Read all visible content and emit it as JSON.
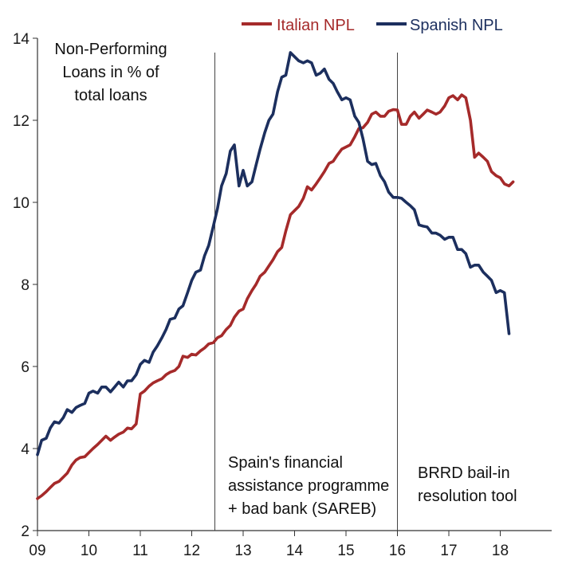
{
  "chart_data": {
    "type": "line",
    "title": "",
    "xlabel": "",
    "ylabel": "",
    "xlim": [
      2009,
      2019
    ],
    "ylim": [
      2,
      14
    ],
    "yticks": [
      2,
      4,
      6,
      8,
      10,
      12,
      14
    ],
    "xticks": [
      {
        "value": 2009,
        "label": "09"
      },
      {
        "value": 2010,
        "label": "10"
      },
      {
        "value": 2011,
        "label": "11"
      },
      {
        "value": 2012,
        "label": "12"
      },
      {
        "value": 2013,
        "label": "13"
      },
      {
        "value": 2014,
        "label": "14"
      },
      {
        "value": 2015,
        "label": "15"
      },
      {
        "value": 2016,
        "label": "16"
      },
      {
        "value": 2017,
        "label": "17"
      },
      {
        "value": 2018,
        "label": "18"
      }
    ],
    "grid": false,
    "legend_position": "top-right",
    "series": [
      {
        "name": "Italian NPL",
        "color": "#a52a2a",
        "points": [
          [
            2009.0,
            2.78
          ],
          [
            2009.08,
            2.85
          ],
          [
            2009.17,
            2.95
          ],
          [
            2009.25,
            3.05
          ],
          [
            2009.33,
            3.15
          ],
          [
            2009.42,
            3.2
          ],
          [
            2009.5,
            3.3
          ],
          [
            2009.58,
            3.4
          ],
          [
            2009.67,
            3.6
          ],
          [
            2009.75,
            3.72
          ],
          [
            2009.83,
            3.78
          ],
          [
            2009.92,
            3.8
          ],
          [
            2010.0,
            3.9
          ],
          [
            2010.08,
            4.0
          ],
          [
            2010.17,
            4.1
          ],
          [
            2010.25,
            4.2
          ],
          [
            2010.33,
            4.3
          ],
          [
            2010.42,
            4.2
          ],
          [
            2010.5,
            4.28
          ],
          [
            2010.58,
            4.35
          ],
          [
            2010.67,
            4.4
          ],
          [
            2010.75,
            4.5
          ],
          [
            2010.83,
            4.48
          ],
          [
            2010.92,
            4.6
          ],
          [
            2011.0,
            5.33
          ],
          [
            2011.08,
            5.4
          ],
          [
            2011.17,
            5.52
          ],
          [
            2011.25,
            5.6
          ],
          [
            2011.33,
            5.65
          ],
          [
            2011.42,
            5.7
          ],
          [
            2011.5,
            5.8
          ],
          [
            2011.58,
            5.86
          ],
          [
            2011.67,
            5.9
          ],
          [
            2011.75,
            6.0
          ],
          [
            2011.83,
            6.25
          ],
          [
            2011.92,
            6.22
          ],
          [
            2012.0,
            6.3
          ],
          [
            2012.08,
            6.28
          ],
          [
            2012.17,
            6.38
          ],
          [
            2012.25,
            6.45
          ],
          [
            2012.33,
            6.55
          ],
          [
            2012.42,
            6.58
          ],
          [
            2012.5,
            6.7
          ],
          [
            2012.58,
            6.75
          ],
          [
            2012.67,
            6.9
          ],
          [
            2012.75,
            7.0
          ],
          [
            2012.83,
            7.2
          ],
          [
            2012.92,
            7.35
          ],
          [
            2013.0,
            7.4
          ],
          [
            2013.08,
            7.65
          ],
          [
            2013.17,
            7.85
          ],
          [
            2013.25,
            8.0
          ],
          [
            2013.33,
            8.2
          ],
          [
            2013.42,
            8.3
          ],
          [
            2013.5,
            8.45
          ],
          [
            2013.58,
            8.6
          ],
          [
            2013.67,
            8.8
          ],
          [
            2013.75,
            8.9
          ],
          [
            2013.83,
            9.3
          ],
          [
            2013.92,
            9.7
          ],
          [
            2014.0,
            9.8
          ],
          [
            2014.08,
            9.9
          ],
          [
            2014.17,
            10.1
          ],
          [
            2014.25,
            10.38
          ],
          [
            2014.33,
            10.3
          ],
          [
            2014.42,
            10.45
          ],
          [
            2014.5,
            10.6
          ],
          [
            2014.58,
            10.75
          ],
          [
            2014.67,
            10.95
          ],
          [
            2014.75,
            11.0
          ],
          [
            2014.83,
            11.15
          ],
          [
            2014.92,
            11.3
          ],
          [
            2015.0,
            11.35
          ],
          [
            2015.08,
            11.4
          ],
          [
            2015.17,
            11.6
          ],
          [
            2015.25,
            11.8
          ],
          [
            2015.33,
            11.82
          ],
          [
            2015.42,
            11.95
          ],
          [
            2015.5,
            12.15
          ],
          [
            2015.58,
            12.2
          ],
          [
            2015.67,
            12.1
          ],
          [
            2015.75,
            12.1
          ],
          [
            2015.83,
            12.22
          ],
          [
            2015.92,
            12.26
          ],
          [
            2016.0,
            12.25
          ],
          [
            2016.08,
            11.9
          ],
          [
            2016.17,
            11.9
          ],
          [
            2016.25,
            12.1
          ],
          [
            2016.33,
            12.2
          ],
          [
            2016.42,
            12.05
          ],
          [
            2016.5,
            12.15
          ],
          [
            2016.58,
            12.25
          ],
          [
            2016.67,
            12.2
          ],
          [
            2016.75,
            12.15
          ],
          [
            2016.83,
            12.2
          ],
          [
            2016.92,
            12.35
          ],
          [
            2017.0,
            12.55
          ],
          [
            2017.08,
            12.6
          ],
          [
            2017.17,
            12.5
          ],
          [
            2017.25,
            12.62
          ],
          [
            2017.33,
            12.55
          ],
          [
            2017.42,
            12.0
          ],
          [
            2017.5,
            11.1
          ],
          [
            2017.58,
            11.2
          ],
          [
            2017.67,
            11.1
          ],
          [
            2017.75,
            11.0
          ],
          [
            2017.83,
            10.75
          ],
          [
            2017.92,
            10.65
          ],
          [
            2018.0,
            10.6
          ],
          [
            2018.08,
            10.45
          ],
          [
            2018.17,
            10.4
          ],
          [
            2018.25,
            10.5
          ]
        ]
      },
      {
        "name": "Spanish NPL",
        "color": "#1c2f5e",
        "points": [
          [
            2009.0,
            3.85
          ],
          [
            2009.08,
            4.2
          ],
          [
            2009.17,
            4.25
          ],
          [
            2009.25,
            4.5
          ],
          [
            2009.33,
            4.65
          ],
          [
            2009.42,
            4.62
          ],
          [
            2009.5,
            4.75
          ],
          [
            2009.58,
            4.95
          ],
          [
            2009.67,
            4.88
          ],
          [
            2009.75,
            5.0
          ],
          [
            2009.83,
            5.05
          ],
          [
            2009.92,
            5.1
          ],
          [
            2010.0,
            5.35
          ],
          [
            2010.08,
            5.4
          ],
          [
            2010.17,
            5.35
          ],
          [
            2010.25,
            5.5
          ],
          [
            2010.33,
            5.5
          ],
          [
            2010.42,
            5.38
          ],
          [
            2010.5,
            5.5
          ],
          [
            2010.58,
            5.62
          ],
          [
            2010.67,
            5.5
          ],
          [
            2010.75,
            5.65
          ],
          [
            2010.83,
            5.65
          ],
          [
            2010.92,
            5.8
          ],
          [
            2011.0,
            6.05
          ],
          [
            2011.08,
            6.15
          ],
          [
            2011.17,
            6.1
          ],
          [
            2011.25,
            6.35
          ],
          [
            2011.33,
            6.5
          ],
          [
            2011.42,
            6.7
          ],
          [
            2011.5,
            6.9
          ],
          [
            2011.58,
            7.15
          ],
          [
            2011.67,
            7.18
          ],
          [
            2011.75,
            7.4
          ],
          [
            2011.83,
            7.48
          ],
          [
            2011.92,
            7.8
          ],
          [
            2012.0,
            8.1
          ],
          [
            2012.08,
            8.3
          ],
          [
            2012.17,
            8.35
          ],
          [
            2012.25,
            8.7
          ],
          [
            2012.33,
            8.95
          ],
          [
            2012.42,
            9.42
          ],
          [
            2012.5,
            9.85
          ],
          [
            2012.58,
            10.4
          ],
          [
            2012.67,
            10.7
          ],
          [
            2012.75,
            11.25
          ],
          [
            2012.83,
            11.4
          ],
          [
            2012.92,
            10.4
          ],
          [
            2013.0,
            10.78
          ],
          [
            2013.08,
            10.4
          ],
          [
            2013.17,
            10.5
          ],
          [
            2013.25,
            10.9
          ],
          [
            2013.33,
            11.3
          ],
          [
            2013.42,
            11.7
          ],
          [
            2013.5,
            12.0
          ],
          [
            2013.58,
            12.15
          ],
          [
            2013.67,
            12.7
          ],
          [
            2013.75,
            13.05
          ],
          [
            2013.83,
            13.1
          ],
          [
            2013.92,
            13.65
          ],
          [
            2014.0,
            13.55
          ],
          [
            2014.08,
            13.45
          ],
          [
            2014.17,
            13.4
          ],
          [
            2014.25,
            13.45
          ],
          [
            2014.33,
            13.4
          ],
          [
            2014.42,
            13.1
          ],
          [
            2014.5,
            13.15
          ],
          [
            2014.58,
            13.25
          ],
          [
            2014.67,
            13.0
          ],
          [
            2014.75,
            12.9
          ],
          [
            2014.83,
            12.7
          ],
          [
            2014.92,
            12.5
          ],
          [
            2015.0,
            12.55
          ],
          [
            2015.08,
            12.5
          ],
          [
            2015.17,
            12.1
          ],
          [
            2015.25,
            11.95
          ],
          [
            2015.33,
            11.55
          ],
          [
            2015.42,
            11.0
          ],
          [
            2015.5,
            10.92
          ],
          [
            2015.58,
            10.95
          ],
          [
            2015.67,
            10.65
          ],
          [
            2015.75,
            10.5
          ],
          [
            2015.83,
            10.25
          ],
          [
            2015.92,
            10.12
          ],
          [
            2016.0,
            10.12
          ],
          [
            2016.08,
            10.1
          ],
          [
            2016.17,
            10.0
          ],
          [
            2016.25,
            9.92
          ],
          [
            2016.33,
            9.82
          ],
          [
            2016.42,
            9.45
          ],
          [
            2016.5,
            9.42
          ],
          [
            2016.58,
            9.4
          ],
          [
            2016.67,
            9.25
          ],
          [
            2016.75,
            9.25
          ],
          [
            2016.83,
            9.2
          ],
          [
            2016.92,
            9.1
          ],
          [
            2017.0,
            9.15
          ],
          [
            2017.08,
            9.15
          ],
          [
            2017.17,
            8.85
          ],
          [
            2017.25,
            8.85
          ],
          [
            2017.33,
            8.75
          ],
          [
            2017.42,
            8.42
          ],
          [
            2017.5,
            8.47
          ],
          [
            2017.58,
            8.47
          ],
          [
            2017.67,
            8.3
          ],
          [
            2017.75,
            8.2
          ],
          [
            2017.83,
            8.1
          ],
          [
            2017.92,
            7.8
          ],
          [
            2018.0,
            7.85
          ],
          [
            2018.08,
            7.8
          ],
          [
            2018.17,
            6.8
          ]
        ]
      }
    ],
    "vlines": [
      2012.45,
      2016.0
    ],
    "annotations": [
      {
        "key": "npl_label",
        "lines": [
          "Non-Performing",
          "Loans in % of",
          "total loans"
        ]
      },
      {
        "key": "spain_label",
        "lines": [
          "Spain's financial",
          "assistance programme",
          "+ bad bank (SAREB)"
        ]
      },
      {
        "key": "brrd_label",
        "lines": [
          "BRRD bail-in",
          "resolution tool"
        ]
      }
    ]
  }
}
